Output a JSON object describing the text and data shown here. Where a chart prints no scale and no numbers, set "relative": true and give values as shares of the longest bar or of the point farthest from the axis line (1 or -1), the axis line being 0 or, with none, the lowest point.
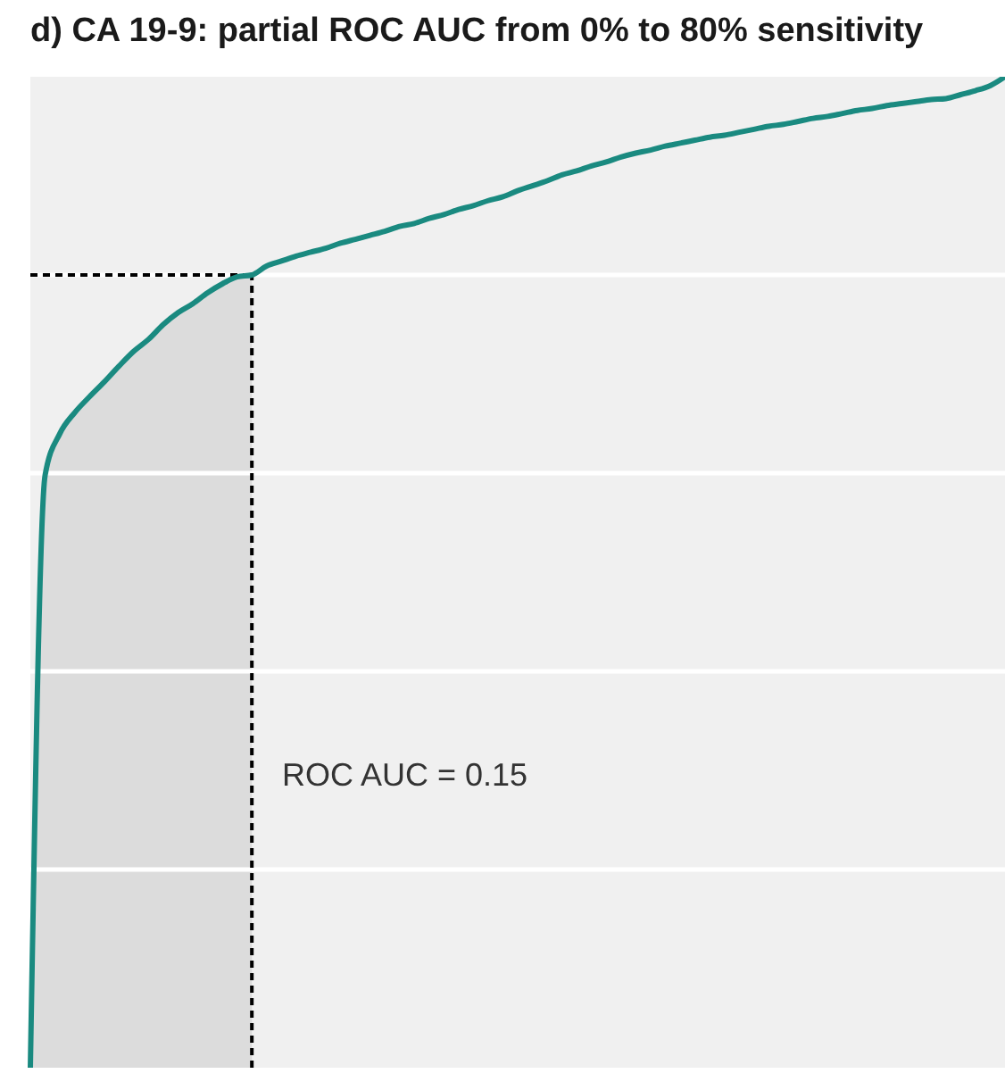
{
  "chart_data": {
    "type": "line",
    "title": "d) CA 19-9: partial ROC AUC from 0% to 80% sensitivity",
    "relative": true,
    "tick_labels": false,
    "grid": "y",
    "categories": [
      null,
      null,
      null,
      null,
      null,
      null,
      null,
      null,
      null,
      null,
      null,
      null,
      null,
      null,
      null,
      null,
      null,
      null,
      null,
      null,
      null,
      null,
      null,
      null,
      null,
      null,
      null,
      null,
      null,
      null,
      null,
      null,
      null,
      null,
      null,
      null,
      null,
      null,
      null,
      null,
      null,
      null,
      null,
      null,
      null,
      null,
      null,
      null,
      null,
      null,
      null,
      null,
      null,
      null,
      null,
      null,
      null,
      null,
      null,
      null,
      null,
      null,
      null,
      null,
      null,
      null,
      null
    ],
    "series": [
      {
        "type": "area",
        "color": "#dcdcdc",
        "values": [
          0,
          0.598,
          0.64,
          0.661,
          0.677,
          0.692,
          0.708,
          0.723,
          0.735,
          0.75,
          0.762,
          0.771,
          0.782,
          0.791,
          0.798,
          0.8,
          null,
          null,
          null,
          null,
          null,
          null,
          null,
          null,
          null,
          null,
          null,
          null,
          null,
          null,
          null,
          null,
          null,
          null,
          null,
          null,
          null,
          null,
          null,
          null,
          null,
          null,
          null,
          null,
          null,
          null,
          null,
          null,
          null,
          null,
          null,
          null,
          null,
          null,
          null,
          null,
          null,
          null,
          null,
          null,
          null,
          null,
          null,
          null,
          null,
          null,
          null
        ]
      },
      {
        "color": "#1a8a80",
        "values": [
          0,
          0.598,
          0.64,
          0.661,
          0.677,
          0.692,
          0.708,
          0.723,
          0.735,
          0.75,
          0.762,
          0.771,
          0.782,
          0.791,
          0.798,
          0.8,
          0.809,
          0.814,
          0.819,
          0.823,
          0.827,
          0.832,
          0.836,
          0.84,
          0.844,
          0.849,
          0.852,
          0.857,
          0.861,
          0.866,
          0.87,
          0.875,
          0.879,
          0.885,
          0.89,
          0.895,
          0.901,
          0.905,
          0.91,
          0.914,
          0.919,
          0.923,
          0.926,
          0.93,
          0.933,
          0.936,
          0.939,
          0.941,
          0.944,
          0.947,
          0.95,
          0.952,
          0.955,
          0.958,
          0.96,
          0.963,
          0.966,
          0.968,
          0.971,
          0.973,
          0.975,
          0.977,
          0.978,
          0.982,
          0.986,
          0.991,
          1
        ]
      }
    ],
    "ref_lines": [
      {
        "axis": "y",
        "value": 0.8,
        "color": "#000000",
        "line_style": "dashed"
      }
    ],
    "annotations": [
      "ROC AUC = 0.15"
    ]
  }
}
